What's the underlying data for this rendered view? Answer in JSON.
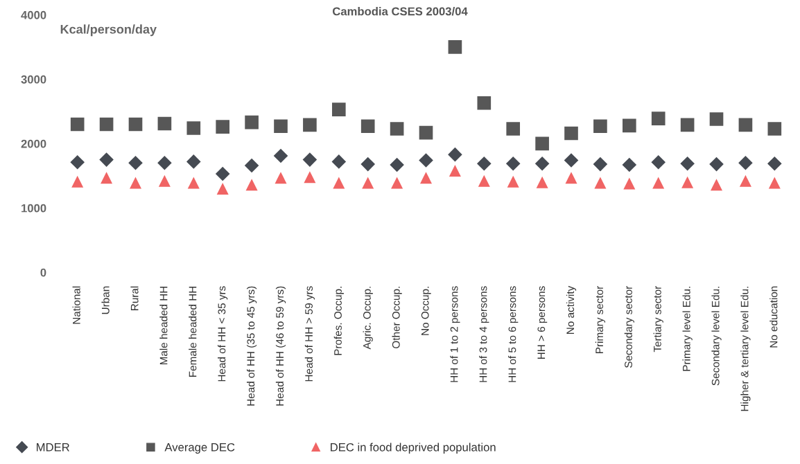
{
  "chart_data": {
    "type": "scatter",
    "title": "Cambodia CSES 2003/04",
    "ylabel": "Kcal/person/day",
    "categories": [
      "National",
      "Urban",
      "Rural",
      "Male headed HH",
      "Female headed HH",
      "Head of HH < 35 yrs",
      "Head of HH (35 to 45 yrs)",
      "Head of HH (46 to 59 yrs)",
      "Head of HH > 59 yrs",
      "Profes. Occup.",
      "Agric. Occup.",
      "Other Occup.",
      "No Occup.",
      "HH of 1 to 2 persons",
      "HH of 3 to 4 persons",
      "HH of 5 to 6 persons",
      "HH > 6 persons",
      "No activity",
      "Primary sector",
      "Secondary sector",
      "Tertiary sector",
      "Primary level Edu.",
      "Secondary level Edu.",
      "Higher & tertiary level Edu.",
      "No education"
    ],
    "series": [
      {
        "name": "MDER",
        "color": "#454a52",
        "marker": "diamond",
        "values": [
          1710,
          1750,
          1700,
          1700,
          1720,
          1530,
          1660,
          1810,
          1750,
          1720,
          1680,
          1670,
          1740,
          1830,
          1690,
          1690,
          1690,
          1740,
          1680,
          1670,
          1710,
          1690,
          1680,
          1700,
          1690
        ]
      },
      {
        "name": "Average DEC",
        "color": "#575757",
        "marker": "square",
        "values": [
          2300,
          2300,
          2300,
          2310,
          2240,
          2260,
          2330,
          2270,
          2290,
          2530,
          2270,
          2230,
          2170,
          3500,
          2630,
          2230,
          2000,
          2160,
          2270,
          2280,
          2390,
          2290,
          2380,
          2290,
          2230
        ]
      },
      {
        "name": "DEC in food deprived population",
        "color": "#f06464",
        "marker": "triangle",
        "values": [
          1410,
          1470,
          1390,
          1420,
          1390,
          1300,
          1360,
          1470,
          1480,
          1390,
          1390,
          1390,
          1470,
          1580,
          1420,
          1410,
          1400,
          1470,
          1390,
          1380,
          1390,
          1400,
          1360,
          1420,
          1390
        ]
      }
    ],
    "ylim": [
      0,
      4000
    ],
    "yticks": [
      0,
      1000,
      2000,
      3000,
      4000
    ],
    "grid": false,
    "legend": "bottom"
  }
}
